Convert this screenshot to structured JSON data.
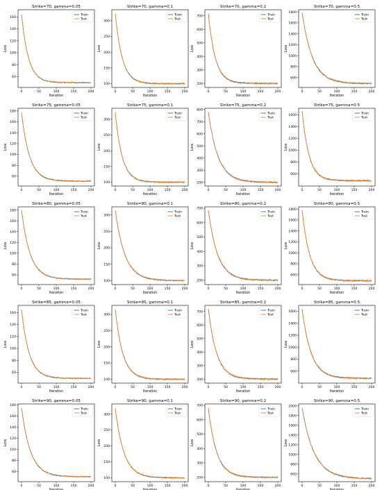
{
  "figure": {
    "xlabel": "Iteration",
    "ylabel": "Loss",
    "colors": {
      "train": "#1f77b4",
      "test": "#ff7f0e"
    }
  },
  "chart_data": [
    {
      "type": "line",
      "title": "Strike=70, gamma=0.05",
      "xlabel": "Iteration",
      "ylabel": "Loss",
      "xlim": [
        -10,
        210
      ],
      "ylim": [
        42,
        172
      ],
      "xticks": [
        0,
        50,
        100,
        150,
        200
      ],
      "yticks": [
        60,
        80,
        100,
        120,
        140,
        160
      ],
      "series": [
        {
          "name": "Train",
          "color": "#1f77b4",
          "start": 164,
          "plateau": 50,
          "tau": 20,
          "noise": 1.2
        },
        {
          "name": "Test",
          "color": "#ff7f0e",
          "start": 164,
          "plateau": 50,
          "tau": 20,
          "noise": 1.1
        }
      ],
      "legend": "top-right",
      "grid": false
    },
    {
      "type": "line",
      "title": "Strike=70, gamma=0.1",
      "xlabel": "Iteration",
      "ylabel": "Loss",
      "xlim": [
        -10,
        210
      ],
      "ylim": [
        88,
        335
      ],
      "xticks": [
        0,
        50,
        100,
        150,
        200
      ],
      "yticks": [
        100,
        150,
        200,
        250,
        300
      ],
      "series": [
        {
          "name": "Train",
          "color": "#1f77b4",
          "start": 322,
          "plateau": 100,
          "tau": 20,
          "noise": 1.3
        },
        {
          "name": "Test",
          "color": "#ff7f0e",
          "start": 322,
          "plateau": 100,
          "tau": 20,
          "noise": 1.3
        }
      ],
      "legend": "top-right",
      "grid": false
    },
    {
      "type": "line",
      "title": "Strike=70, gamma=0.2",
      "xlabel": "Iteration",
      "ylabel": "Loss",
      "xlim": [
        -10,
        210
      ],
      "ylim": [
        170,
        745
      ],
      "xticks": [
        0,
        50,
        100,
        150,
        200
      ],
      "yticks": [
        200,
        300,
        400,
        500,
        600,
        700
      ],
      "series": [
        {
          "name": "Train",
          "color": "#1f77b4",
          "start": 718,
          "plateau": 200,
          "tau": 20,
          "noise": 1.5
        },
        {
          "name": "Test",
          "color": "#ff7f0e",
          "start": 718,
          "plateau": 200,
          "tau": 20,
          "noise": 1.5
        }
      ],
      "legend": "top-right",
      "grid": false
    },
    {
      "type": "line",
      "title": "Strike=70, gamma=0.5",
      "xlabel": "Iteration",
      "ylabel": "Loss",
      "xlim": [
        -10,
        210
      ],
      "ylim": [
        420,
        1840
      ],
      "xticks": [
        0,
        50,
        100,
        150,
        200
      ],
      "yticks": [
        600,
        800,
        1000,
        1200,
        1400,
        1600,
        1800
      ],
      "series": [
        {
          "name": "Train",
          "color": "#1f77b4",
          "start": 1785,
          "plateau": 490,
          "tau": 30,
          "noise": 1.5
        },
        {
          "name": "Test",
          "color": "#ff7f0e",
          "start": 1785,
          "plateau": 490,
          "tau": 30,
          "noise": 1.5
        }
      ],
      "legend": "top-right",
      "grid": false
    },
    {
      "type": "line",
      "title": "Strike=75, gamma=0.05",
      "xlabel": "Iteration",
      "ylabel": "Loss",
      "xlim": [
        -10,
        210
      ],
      "ylim": [
        42,
        185
      ],
      "xticks": [
        0,
        50,
        100,
        150,
        200
      ],
      "yticks": [
        60,
        80,
        100,
        120,
        140,
        160,
        180
      ],
      "series": [
        {
          "name": "Train",
          "color": "#1f77b4",
          "start": 177,
          "plateau": 51,
          "tau": 23,
          "noise": 1.2
        },
        {
          "name": "Test",
          "color": "#ff7f0e",
          "start": 177,
          "plateau": 51,
          "tau": 23,
          "noise": 1.1
        }
      ],
      "legend": "top-right",
      "grid": false
    },
    {
      "type": "line",
      "title": "Strike=75, gamma=0.1",
      "xlabel": "Iteration",
      "ylabel": "Loss",
      "xlim": [
        -10,
        210
      ],
      "ylim": [
        88,
        335
      ],
      "xticks": [
        0,
        50,
        100,
        150,
        200
      ],
      "yticks": [
        100,
        150,
        200,
        250,
        300
      ],
      "series": [
        {
          "name": "Train",
          "color": "#1f77b4",
          "start": 322,
          "plateau": 100,
          "tau": 20,
          "noise": 1.3
        },
        {
          "name": "Test",
          "color": "#ff7f0e",
          "start": 322,
          "plateau": 100,
          "tau": 20,
          "noise": 1.3
        }
      ],
      "legend": "top-right",
      "grid": false
    },
    {
      "type": "line",
      "title": "Strike=75, gamma=0.2",
      "xlabel": "Iteration",
      "ylabel": "Loss",
      "xlim": [
        -10,
        210
      ],
      "ylim": [
        170,
        810
      ],
      "xticks": [
        0,
        50,
        100,
        150,
        200
      ],
      "yticks": [
        200,
        300,
        400,
        500,
        600,
        700,
        800
      ],
      "series": [
        {
          "name": "Train",
          "color": "#1f77b4",
          "start": 780,
          "plateau": 200,
          "tau": 28,
          "noise": 1.5
        },
        {
          "name": "Test",
          "color": "#ff7f0e",
          "start": 780,
          "plateau": 200,
          "tau": 28,
          "noise": 1.5
        }
      ],
      "legend": "top-right",
      "grid": false
    },
    {
      "type": "line",
      "title": "Strike=75, gamma=0.5",
      "xlabel": "Iteration",
      "ylabel": "Loss",
      "xlim": [
        -10,
        210
      ],
      "ylim": [
        390,
        1710
      ],
      "xticks": [
        0,
        50,
        100,
        150,
        200
      ],
      "yticks": [
        600,
        800,
        1000,
        1200,
        1400,
        1600
      ],
      "series": [
        {
          "name": "Train",
          "color": "#1f77b4",
          "start": 1665,
          "plateau": 480,
          "tau": 20,
          "noise": 1.5
        },
        {
          "name": "Test",
          "color": "#ff7f0e",
          "start": 1665,
          "plateau": 480,
          "tau": 20,
          "noise": 1.5
        }
      ],
      "legend": "top-right",
      "grid": false
    },
    {
      "type": "line",
      "title": "Strike=80, gamma=0.05",
      "xlabel": "Iteration",
      "ylabel": "Loss",
      "xlim": [
        -10,
        210
      ],
      "ylim": [
        42,
        186
      ],
      "xticks": [
        0,
        50,
        100,
        150,
        200
      ],
      "yticks": [
        60,
        80,
        100,
        120,
        140,
        160,
        180
      ],
      "series": [
        {
          "name": "Train",
          "color": "#1f77b4",
          "start": 180,
          "plateau": 52,
          "tau": 25,
          "noise": 1.2
        },
        {
          "name": "Test",
          "color": "#ff7f0e",
          "start": 180,
          "plateau": 52,
          "tau": 25,
          "noise": 1.1
        }
      ],
      "legend": "top-right",
      "grid": false
    },
    {
      "type": "line",
      "title": "Strike=80, gamma=0.1",
      "xlabel": "Iteration",
      "ylabel": "Loss",
      "xlim": [
        -10,
        210
      ],
      "ylim": [
        88,
        325
      ],
      "xticks": [
        0,
        50,
        100,
        150,
        200
      ],
      "yticks": [
        100,
        150,
        200,
        250,
        300
      ],
      "series": [
        {
          "name": "Train",
          "color": "#1f77b4",
          "start": 314,
          "plateau": 100,
          "tau": 28,
          "noise": 1.3
        },
        {
          "name": "Test",
          "color": "#ff7f0e",
          "start": 314,
          "plateau": 100,
          "tau": 28,
          "noise": 1.3
        }
      ],
      "legend": "top-right",
      "grid": false
    },
    {
      "type": "line",
      "title": "Strike=80, gamma=0.2",
      "xlabel": "Iteration",
      "ylabel": "Loss",
      "xlim": [
        -10,
        210
      ],
      "ylim": [
        170,
        710
      ],
      "xticks": [
        0,
        50,
        100,
        150,
        200
      ],
      "yticks": [
        200,
        300,
        400,
        500,
        600,
        700
      ],
      "series": [
        {
          "name": "Train",
          "color": "#1f77b4",
          "start": 686,
          "plateau": 200,
          "tau": 27,
          "noise": 1.5
        },
        {
          "name": "Test",
          "color": "#ff7f0e",
          "start": 686,
          "plateau": 200,
          "tau": 27,
          "noise": 1.5
        }
      ],
      "legend": "top-right",
      "grid": false
    },
    {
      "type": "line",
      "title": "Strike=80, gamma=0.5",
      "xlabel": "Iteration",
      "ylabel": "Loss",
      "xlim": [
        -10,
        210
      ],
      "ylim": [
        420,
        1840
      ],
      "xticks": [
        0,
        50,
        100,
        150,
        200
      ],
      "yticks": [
        600,
        800,
        1000,
        1200,
        1400,
        1600,
        1800
      ],
      "series": [
        {
          "name": "Train",
          "color": "#1f77b4",
          "start": 1780,
          "plateau": 490,
          "tau": 22,
          "noise": 1.5
        },
        {
          "name": "Test",
          "color": "#ff7f0e",
          "start": 1780,
          "plateau": 490,
          "tau": 22,
          "noise": 1.5
        }
      ],
      "legend": "top-right",
      "grid": false
    },
    {
      "type": "line",
      "title": "Strike=85, gamma=0.05",
      "xlabel": "Iteration",
      "ylabel": "Loss",
      "xlim": [
        -10,
        210
      ],
      "ylim": [
        42,
        172
      ],
      "xticks": [
        0,
        50,
        100,
        150,
        200
      ],
      "yticks": [
        60,
        80,
        100,
        120,
        140,
        160
      ],
      "series": [
        {
          "name": "Train",
          "color": "#1f77b4",
          "start": 165,
          "plateau": 50,
          "tau": 22,
          "noise": 1.2
        },
        {
          "name": "Test",
          "color": "#ff7f0e",
          "start": 165,
          "plateau": 50,
          "tau": 22,
          "noise": 1.1
        }
      ],
      "legend": "top-right",
      "grid": false
    },
    {
      "type": "line",
      "title": "Strike=85, gamma=0.1",
      "xlabel": "Iteration",
      "ylabel": "Loss",
      "xlim": [
        -10,
        210
      ],
      "ylim": [
        88,
        328
      ],
      "xticks": [
        0,
        50,
        100,
        150,
        200
      ],
      "yticks": [
        100,
        150,
        200,
        250,
        300
      ],
      "series": [
        {
          "name": "Train",
          "color": "#1f77b4",
          "start": 315,
          "plateau": 100,
          "tau": 22,
          "noise": 1.3
        },
        {
          "name": "Test",
          "color": "#ff7f0e",
          "start": 315,
          "plateau": 100,
          "tau": 22,
          "noise": 1.3
        }
      ],
      "legend": "top-right",
      "grid": false
    },
    {
      "type": "line",
      "title": "Strike=85, gamma=0.2",
      "xlabel": "Iteration",
      "ylabel": "Loss",
      "xlim": [
        -10,
        210
      ],
      "ylim": [
        170,
        745
      ],
      "xticks": [
        0,
        50,
        100,
        150,
        200
      ],
      "yticks": [
        200,
        300,
        400,
        500,
        600,
        700
      ],
      "series": [
        {
          "name": "Train",
          "color": "#1f77b4",
          "start": 720,
          "plateau": 200,
          "tau": 24,
          "noise": 1.5
        },
        {
          "name": "Test",
          "color": "#ff7f0e",
          "start": 720,
          "plateau": 200,
          "tau": 24,
          "noise": 1.5
        }
      ],
      "legend": "top-right",
      "grid": false
    },
    {
      "type": "line",
      "title": "Strike=85, gamma=0.5",
      "xlabel": "Iteration",
      "ylabel": "Loss",
      "xlim": [
        -10,
        210
      ],
      "ylim": [
        400,
        1700
      ],
      "xticks": [
        0,
        50,
        100,
        150,
        200
      ],
      "yticks": [
        600,
        800,
        1000,
        1200,
        1400,
        1600
      ],
      "series": [
        {
          "name": "Train",
          "color": "#1f77b4",
          "start": 1640,
          "plateau": 480,
          "tau": 26,
          "noise": 1.5
        },
        {
          "name": "Test",
          "color": "#ff7f0e",
          "start": 1640,
          "plateau": 480,
          "tau": 26,
          "noise": 1.5
        }
      ],
      "legend": "top-right",
      "grid": false
    },
    {
      "type": "line",
      "title": "Strike=90, gamma=0.05",
      "xlabel": "Iteration",
      "ylabel": "Loss",
      "xlim": [
        -10,
        210
      ],
      "ylim": [
        42,
        182
      ],
      "xticks": [
        0,
        50,
        100,
        150,
        200
      ],
      "yticks": [
        60,
        80,
        100,
        120,
        140,
        160,
        180
      ],
      "series": [
        {
          "name": "Train",
          "color": "#1f77b4",
          "start": 175,
          "plateau": 51,
          "tau": 26,
          "noise": 1.2
        },
        {
          "name": "Test",
          "color": "#ff7f0e",
          "start": 175,
          "plateau": 51,
          "tau": 26,
          "noise": 1.1
        }
      ],
      "legend": "top-right",
      "grid": false
    },
    {
      "type": "line",
      "title": "Strike=90, gamma=0.1",
      "xlabel": "Iteration",
      "ylabel": "Loss",
      "xlim": [
        -10,
        210
      ],
      "ylim": [
        88,
        332
      ],
      "xticks": [
        0,
        50,
        100,
        150,
        200
      ],
      "yticks": [
        100,
        150,
        200,
        250,
        300
      ],
      "series": [
        {
          "name": "Train",
          "color": "#1f77b4",
          "start": 318,
          "plateau": 100,
          "tau": 25,
          "noise": 1.3
        },
        {
          "name": "Test",
          "color": "#ff7f0e",
          "start": 318,
          "plateau": 100,
          "tau": 25,
          "noise": 1.3
        }
      ],
      "legend": "top-right",
      "grid": false
    },
    {
      "type": "line",
      "title": "Strike=90, gamma=0.2",
      "xlabel": "Iteration",
      "ylabel": "Loss",
      "xlim": [
        -10,
        210
      ],
      "ylim": [
        170,
        710
      ],
      "xticks": [
        0,
        50,
        100,
        150,
        200
      ],
      "yticks": [
        200,
        300,
        400,
        500,
        600,
        700
      ],
      "series": [
        {
          "name": "Train",
          "color": "#1f77b4",
          "start": 680,
          "plateau": 200,
          "tau": 24,
          "noise": 1.5
        },
        {
          "name": "Test",
          "color": "#ff7f0e",
          "start": 680,
          "plateau": 200,
          "tau": 24,
          "noise": 1.5
        }
      ],
      "legend": "top-right",
      "grid": false
    },
    {
      "type": "line",
      "title": "Strike=90, gamma=0.5",
      "xlabel": "Iteration",
      "ylabel": "Loss",
      "xlim": [
        -10,
        210
      ],
      "ylim": [
        440,
        2040
      ],
      "xticks": [
        0,
        50,
        100,
        150,
        200
      ],
      "yticks": [
        600,
        800,
        1000,
        1200,
        1400,
        1600,
        1800,
        2000
      ],
      "series": [
        {
          "name": "Train",
          "color": "#1f77b4",
          "start": 1960,
          "plateau": 500,
          "tau": 35,
          "noise": 1.5
        },
        {
          "name": "Test",
          "color": "#ff7f0e",
          "start": 1960,
          "plateau": 500,
          "tau": 35,
          "noise": 1.5
        }
      ],
      "legend": "top-right",
      "grid": false
    }
  ]
}
